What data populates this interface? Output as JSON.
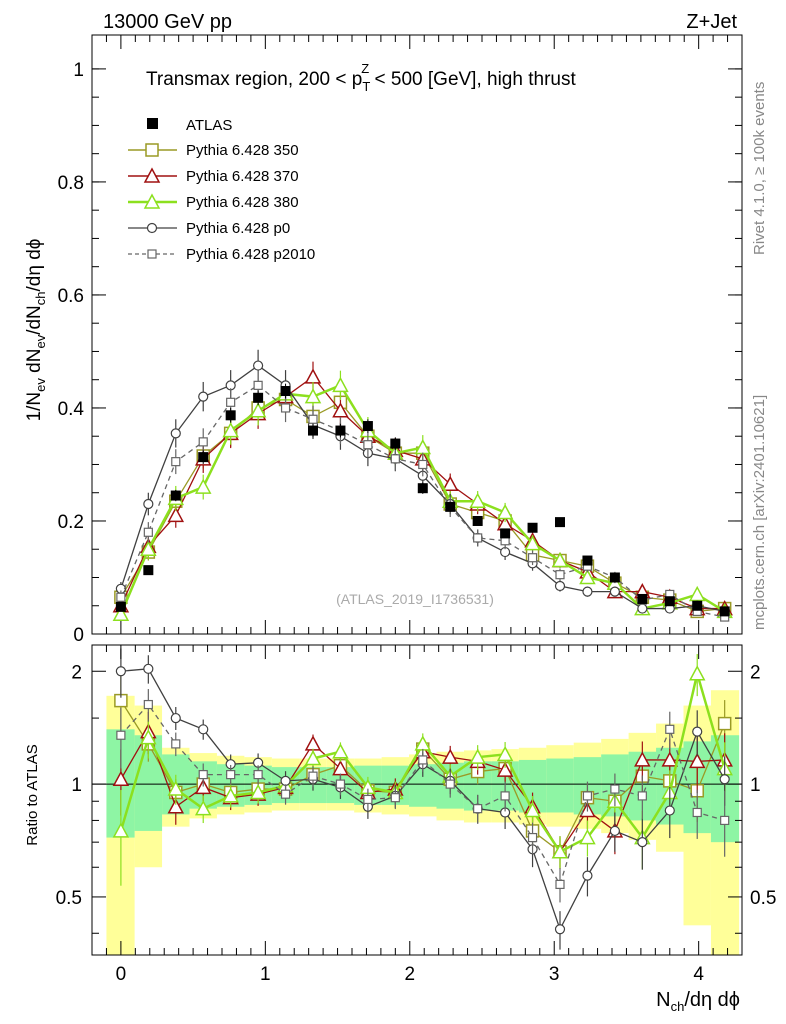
{
  "header": {
    "left": "13000 GeV pp",
    "right": "Z+Jet"
  },
  "side": {
    "rivet": "Rivet 4.1.0, ≥ 100k events",
    "mcplots": "mcplots.cern.ch [arXiv:2401.10621]"
  },
  "watermark": "(ATLAS_2019_I1736531)",
  "chart_data": [
    {
      "type": "scatter",
      "panel": "main",
      "title_parts": [
        "Transmax region, 200 < p",
        "T",
        "Z",
        " < 500 [GeV], high thrust"
      ],
      "ylabel_parts": [
        "1/N",
        "ev",
        " dN",
        "ev",
        "/dN",
        "ch",
        "/dη dϕ"
      ],
      "xlim": [
        -0.2,
        4.3
      ],
      "ylim": [
        0,
        1.06
      ],
      "yticks": [
        0,
        0.2,
        0.4,
        0.6,
        0.8,
        1
      ],
      "ytick_labels": [
        "0",
        "0.2",
        "0.4",
        "0.6",
        "0.8",
        "1"
      ],
      "legend": [
        "ATLAS",
        "Pythia 6.428 350",
        "Pythia 6.428 370",
        "Pythia 6.428 380",
        "Pythia 6.428 p0",
        "Pythia 6.428 p2010"
      ],
      "series": [
        {
          "name": "ATLAS",
          "color": "#000000",
          "style": "data",
          "x": [
            0,
            0.19,
            0.38,
            0.57,
            0.76,
            0.95,
            1.14,
            1.33,
            1.52,
            1.71,
            1.9,
            2.09,
            2.28,
            2.47,
            2.66,
            2.85,
            3.04,
            3.23,
            3.42,
            3.61,
            3.8,
            3.99,
            4.18
          ],
          "values": [
            0.048,
            0.113,
            0.245,
            0.313,
            0.387,
            0.418,
            0.43,
            0.36,
            0.36,
            0.368,
            0.337,
            0.258,
            0.225,
            0.2,
            0.178,
            0.188,
            0.198,
            0.13,
            0.1,
            0.062,
            0.058,
            0.05,
            0.04
          ],
          "errors": [
            0.004,
            0.005,
            0.01,
            0.012,
            0.013,
            0.013,
            0.013,
            0.012,
            0.012,
            0.012,
            0.011,
            0.01,
            0.009,
            0.008,
            0.008,
            0.008,
            0.008,
            0.007,
            0.006,
            0.005,
            0.005,
            0.004,
            0.004
          ]
        },
        {
          "name": "Pythia 6.428 350",
          "color": "#9a9a25",
          "style": "square-open",
          "x": [
            0,
            0.19,
            0.38,
            0.57,
            0.76,
            0.95,
            1.14,
            1.33,
            1.52,
            1.71,
            1.9,
            2.09,
            2.28,
            2.47,
            2.66,
            2.85,
            3.04,
            3.23,
            3.42,
            3.61,
            3.8,
            3.99,
            4.18
          ],
          "values": [
            0.065,
            0.145,
            0.235,
            0.315,
            0.355,
            0.4,
            0.415,
            0.385,
            0.41,
            0.35,
            0.32,
            0.32,
            0.23,
            0.215,
            0.2,
            0.14,
            0.13,
            0.12,
            0.09,
            0.065,
            0.06,
            0.04,
            0.045
          ],
          "errors": [
            0.012,
            0.015,
            0.02,
            0.022,
            0.024,
            0.025,
            0.025,
            0.024,
            0.024,
            0.022,
            0.02,
            0.02,
            0.017,
            0.016,
            0.015,
            0.013,
            0.012,
            0.011,
            0.01,
            0.008,
            0.008,
            0.007,
            0.007
          ]
        },
        {
          "name": "Pythia 6.428 370",
          "color": "#a01010",
          "style": "triangle-open",
          "x": [
            0,
            0.19,
            0.38,
            0.57,
            0.76,
            0.95,
            1.14,
            1.33,
            1.52,
            1.71,
            1.9,
            2.09,
            2.28,
            2.47,
            2.66,
            2.85,
            3.04,
            3.23,
            3.42,
            3.61,
            3.8,
            3.99,
            4.18
          ],
          "values": [
            0.05,
            0.155,
            0.21,
            0.31,
            0.355,
            0.39,
            0.42,
            0.455,
            0.395,
            0.35,
            0.325,
            0.31,
            0.265,
            0.23,
            0.195,
            0.165,
            0.13,
            0.11,
            0.075,
            0.075,
            0.065,
            0.045,
            0.045
          ],
          "errors": [
            0.01,
            0.02,
            0.022,
            0.025,
            0.026,
            0.027,
            0.027,
            0.027,
            0.026,
            0.024,
            0.022,
            0.021,
            0.019,
            0.018,
            0.016,
            0.015,
            0.013,
            0.012,
            0.01,
            0.009,
            0.009,
            0.008,
            0.008
          ]
        },
        {
          "name": "Pythia 6.428 380",
          "color": "#8ce01e",
          "style": "triangle-open",
          "x": [
            0,
            0.19,
            0.38,
            0.57,
            0.76,
            0.95,
            1.14,
            1.33,
            1.52,
            1.71,
            1.9,
            2.09,
            2.28,
            2.47,
            2.66,
            2.85,
            3.04,
            3.23,
            3.42,
            3.61,
            3.8,
            3.99,
            4.18
          ],
          "values": [
            0.035,
            0.15,
            0.24,
            0.26,
            0.36,
            0.395,
            0.425,
            0.42,
            0.44,
            0.36,
            0.32,
            0.33,
            0.235,
            0.235,
            0.215,
            0.16,
            0.13,
            0.1,
            0.09,
            0.045,
            0.055,
            0.07,
            0.04
          ],
          "errors": [
            0.01,
            0.018,
            0.022,
            0.022,
            0.025,
            0.026,
            0.026,
            0.026,
            0.026,
            0.024,
            0.022,
            0.022,
            0.018,
            0.018,
            0.017,
            0.015,
            0.013,
            0.011,
            0.01,
            0.008,
            0.008,
            0.009,
            0.007
          ]
        },
        {
          "name": "Pythia 6.428 p0",
          "color": "#404040",
          "style": "circle-open",
          "x": [
            0,
            0.19,
            0.38,
            0.57,
            0.76,
            0.95,
            1.14,
            1.33,
            1.52,
            1.71,
            1.9,
            2.09,
            2.28,
            2.47,
            2.66,
            2.85,
            3.04,
            3.23,
            3.42,
            3.61,
            3.8,
            3.99,
            4.18
          ],
          "values": [
            0.08,
            0.23,
            0.355,
            0.42,
            0.44,
            0.475,
            0.44,
            0.37,
            0.35,
            0.32,
            0.31,
            0.28,
            0.23,
            0.17,
            0.145,
            0.125,
            0.085,
            0.075,
            0.075,
            0.045,
            0.045,
            0.05,
            0.04
          ],
          "errors": [
            0.012,
            0.02,
            0.025,
            0.026,
            0.027,
            0.028,
            0.027,
            0.025,
            0.024,
            0.023,
            0.022,
            0.021,
            0.018,
            0.015,
            0.014,
            0.013,
            0.01,
            0.009,
            0.009,
            0.007,
            0.007,
            0.007,
            0.006
          ]
        },
        {
          "name": "Pythia 6.428 p2010",
          "color": "#666666",
          "style": "square-open-dashed",
          "x": [
            0,
            0.19,
            0.38,
            0.57,
            0.76,
            0.95,
            1.14,
            1.33,
            1.52,
            1.71,
            1.9,
            2.09,
            2.28,
            2.47,
            2.66,
            2.85,
            3.04,
            3.23,
            3.42,
            3.61,
            3.8,
            3.99,
            4.18
          ],
          "values": [
            0.065,
            0.18,
            0.305,
            0.34,
            0.41,
            0.44,
            0.4,
            0.38,
            0.36,
            0.335,
            0.31,
            0.3,
            0.225,
            0.17,
            0.165,
            0.135,
            0.105,
            0.12,
            0.1,
            0.06,
            0.07,
            0.04,
            0.03
          ],
          "errors": [
            0.012,
            0.018,
            0.022,
            0.024,
            0.025,
            0.026,
            0.025,
            0.024,
            0.024,
            0.023,
            0.021,
            0.021,
            0.018,
            0.015,
            0.015,
            0.013,
            0.011,
            0.011,
            0.01,
            0.008,
            0.008,
            0.006,
            0.006
          ]
        }
      ]
    },
    {
      "type": "scatter",
      "panel": "ratio",
      "ylabel": "Ratio to ATLAS",
      "xlabel_parts": [
        "N",
        "ch",
        "/dη dϕ"
      ],
      "xlim": [
        -0.2,
        4.3
      ],
      "ylim": [
        0.35,
        2.35
      ],
      "xticks": [
        0,
        1,
        2,
        3,
        4
      ],
      "xtick_labels": [
        "0",
        "1",
        "2",
        "3",
        "4"
      ],
      "yticks": [
        0.5,
        1,
        2
      ],
      "ytick_labels": [
        "0.5",
        "1",
        "2"
      ],
      "bands": {
        "bin_edges": [
          -0.1,
          0.095,
          0.285,
          0.475,
          0.665,
          0.855,
          1.045,
          1.235,
          1.425,
          1.615,
          1.805,
          1.995,
          2.185,
          2.375,
          2.565,
          2.755,
          2.945,
          3.135,
          3.325,
          3.515,
          3.705,
          3.895,
          4.085,
          4.28
        ],
        "stat_syst_lo": [
          0.72,
          0.75,
          0.83,
          0.86,
          0.87,
          0.88,
          0.89,
          0.89,
          0.89,
          0.88,
          0.88,
          0.87,
          0.86,
          0.85,
          0.85,
          0.84,
          0.84,
          0.83,
          0.82,
          0.8,
          0.78,
          0.74,
          0.7
        ],
        "stat_syst_hi": [
          1.4,
          1.35,
          1.2,
          1.15,
          1.13,
          1.12,
          1.11,
          1.11,
          1.11,
          1.12,
          1.12,
          1.13,
          1.14,
          1.15,
          1.15,
          1.16,
          1.17,
          1.18,
          1.2,
          1.22,
          1.25,
          1.3,
          1.35
        ],
        "total_lo": [
          0.35,
          0.6,
          0.77,
          0.81,
          0.83,
          0.84,
          0.85,
          0.85,
          0.85,
          0.84,
          0.83,
          0.82,
          0.8,
          0.79,
          0.79,
          0.78,
          0.77,
          0.76,
          0.74,
          0.71,
          0.66,
          0.42,
          0.35
        ],
        "total_hi": [
          1.72,
          1.62,
          1.25,
          1.21,
          1.19,
          1.18,
          1.17,
          1.17,
          1.17,
          1.17,
          1.18,
          1.2,
          1.22,
          1.23,
          1.24,
          1.25,
          1.27,
          1.29,
          1.32,
          1.37,
          1.45,
          1.62,
          1.78
        ]
      },
      "series": [
        {
          "name": "Pythia 6.428 350",
          "color": "#9a9a25",
          "values": [
            1.67,
            1.28,
            0.95,
            1.0,
            0.95,
            0.97,
            0.97,
            1.06,
            1.12,
            0.96,
            0.95,
            1.24,
            1.03,
            1.08,
            1.1,
            0.75,
            0.66,
            0.92,
            0.9,
            1.05,
            1.02,
            0.96,
            1.45
          ]
        },
        {
          "name": "Pythia 6.428 370",
          "color": "#a01010",
          "values": [
            1.03,
            1.38,
            0.87,
            0.98,
            0.92,
            0.94,
            0.98,
            1.28,
            1.1,
            0.95,
            0.97,
            1.22,
            1.18,
            1.15,
            1.09,
            0.87,
            0.66,
            0.85,
            0.75,
            1.16,
            1.16,
            1.15,
            1.16
          ]
        },
        {
          "name": "Pythia 6.428 380",
          "color": "#8ce01e",
          "values": [
            0.75,
            1.33,
            0.97,
            0.86,
            0.93,
            0.95,
            0.99,
            1.17,
            1.22,
            0.98,
            0.95,
            1.28,
            1.05,
            1.18,
            1.2,
            0.85,
            0.66,
            0.72,
            0.9,
            0.72,
            0.95,
            1.97,
            1.1
          ]
        },
        {
          "name": "Pythia 6.428 p0",
          "color": "#404040",
          "values": [
            2.0,
            2.03,
            1.5,
            1.4,
            1.13,
            1.14,
            1.02,
            1.03,
            0.98,
            0.87,
            0.93,
            1.13,
            1.02,
            0.86,
            0.84,
            0.67,
            0.41,
            0.57,
            0.75,
            0.7,
            0.85,
            1.38,
            1.03
          ]
        },
        {
          "name": "Pythia 6.428 p2010",
          "color": "#666666",
          "dashed": true,
          "values": [
            1.35,
            1.63,
            1.28,
            1.06,
            1.06,
            1.06,
            0.94,
            1.05,
            1.0,
            0.91,
            0.92,
            1.16,
            1.0,
            0.86,
            0.93,
            0.72,
            0.54,
            0.93,
            0.97,
            0.93,
            1.4,
            0.84,
            0.8
          ]
        }
      ]
    }
  ]
}
